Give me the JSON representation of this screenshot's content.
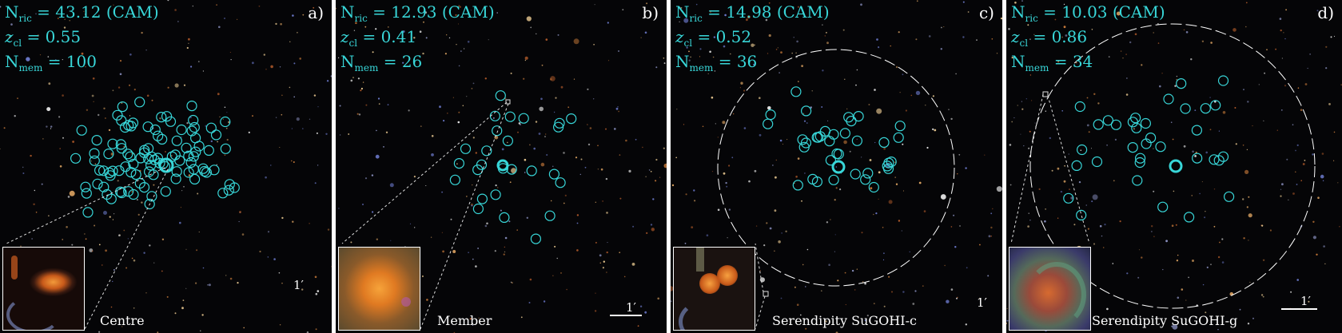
{
  "panels": [
    {
      "id": "a",
      "richness": "N",
      "richness_sub": "ric",
      "richness_value": " = 43.12 (CAM)",
      "z": "z",
      "z_sub": "cl",
      "z_value": " = 0.55",
      "mem": "N",
      "mem_sub": "mem",
      "mem_value": " = 100",
      "letter": "a)",
      "caption": "Centre",
      "scale_label": "1′"
    },
    {
      "id": "b",
      "richness": "N",
      "richness_sub": "ric",
      "richness_value": " = 12.93 (CAM)",
      "z": "z",
      "z_sub": "cl",
      "z_value": " = 0.41",
      "mem": "N",
      "mem_sub": "mem",
      "mem_value": " = 26",
      "letter": "b)",
      "caption": "Member",
      "scale_label": "1′"
    },
    {
      "id": "c",
      "richness": "N",
      "richness_sub": "ric",
      "richness_value": " = 14.98 (CAM)",
      "z": "z",
      "z_sub": "cl",
      "z_value": " = 0.52",
      "mem": "N",
      "mem_sub": "mem",
      "mem_value": " = 36",
      "letter": "c)",
      "caption": "Serendipity SuGOHI-c",
      "scale_label": "1′"
    },
    {
      "id": "d",
      "richness": "N",
      "richness_sub": "ric",
      "richness_value": " = 10.03 (CAM)",
      "z": "z",
      "z_sub": "cl",
      "z_value": " = 0.86",
      "mem": "N",
      "mem_sub": "mem",
      "mem_value": " = 34",
      "letter": "d)",
      "caption": "Serendipity SuGOHI-g",
      "scale_label": "1′"
    }
  ],
  "colors": {
    "annotation": "#38d6d8",
    "member_circle": "#38d6d8",
    "background": "#050507",
    "frame": "#ffffff"
  }
}
